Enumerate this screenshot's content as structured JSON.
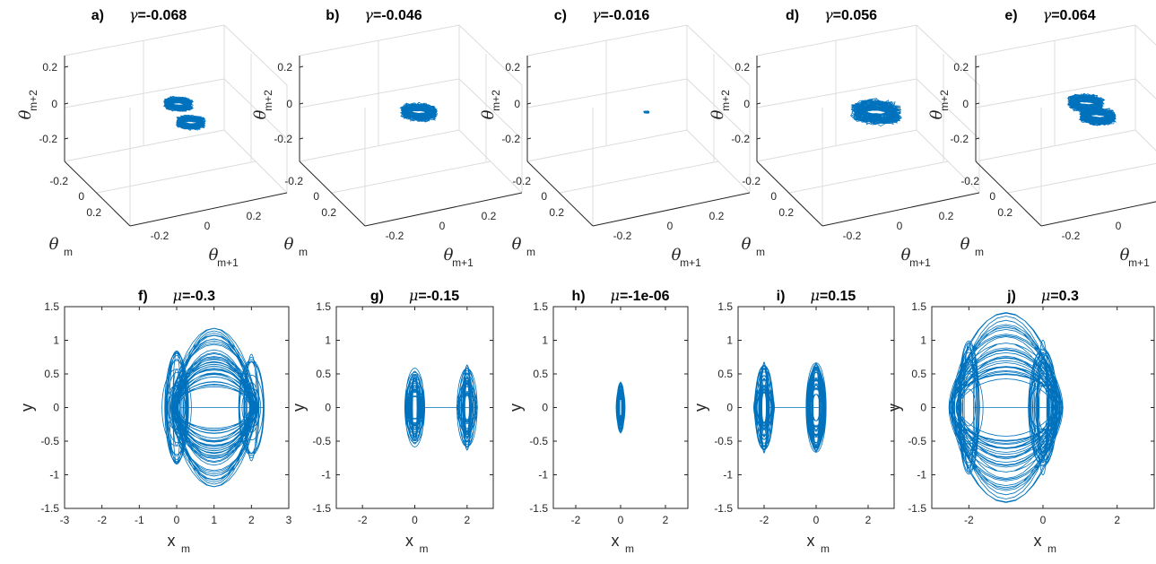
{
  "chart_data": [
    {
      "panel": "a)",
      "param_symbol": "γ",
      "param_value": "=-0.068",
      "type": "line3d",
      "xlabel": {
        "main": "θ",
        "sub": "m+1"
      },
      "ylabel": {
        "main": "θ",
        "sub": "m"
      },
      "zlabel": {
        "main": "θ",
        "sub": "m+2"
      },
      "xticks": [
        "-0.2",
        "0",
        "0.2"
      ],
      "yticks": [
        "-0.2",
        "0",
        "0.2"
      ],
      "zticks": [
        "0.2",
        "0",
        "-0.2"
      ],
      "attractor": {
        "shape": "double-lobe",
        "centers": [
          [
            -0.1,
            -0.1
          ],
          [
            0.13,
            0.13
          ]
        ],
        "radius": 0.08,
        "color": "#0072bd"
      }
    },
    {
      "panel": "b)",
      "param_symbol": "γ",
      "param_value": "=-0.046",
      "type": "line3d",
      "xlabel": {
        "main": "θ",
        "sub": "m+1"
      },
      "ylabel": {
        "main": "θ",
        "sub": "m"
      },
      "zlabel": {
        "main": "θ",
        "sub": "m+2"
      },
      "xticks": [
        "-0.2",
        "0",
        "0.2"
      ],
      "yticks": [
        "-0.2",
        "0",
        "0.2"
      ],
      "zticks": [
        "0.2",
        "0",
        "-0.2"
      ],
      "attractor": {
        "shape": "single-lobe",
        "centers": [
          [
            0,
            0
          ]
        ],
        "radius": 0.1,
        "color": "#0072bd"
      }
    },
    {
      "panel": "c)",
      "param_symbol": "γ",
      "param_value": "=-0.016",
      "type": "line3d",
      "xlabel": {
        "main": "θ",
        "sub": "m+1"
      },
      "ylabel": {
        "main": "θ",
        "sub": "m"
      },
      "zlabel": {
        "main": "θ",
        "sub": "m+2"
      },
      "xticks": [
        "-0.2",
        "0",
        "0.2"
      ],
      "yticks": [
        "-0.2",
        "0",
        "0.2"
      ],
      "zticks": [
        "0.2",
        "0",
        "-0.2"
      ],
      "attractor": {
        "shape": "point",
        "centers": [
          [
            0,
            0
          ]
        ],
        "radius": 0.015,
        "color": "#0072bd"
      }
    },
    {
      "panel": "d)",
      "param_symbol": "γ",
      "param_value": "=0.056",
      "type": "line3d",
      "xlabel": {
        "main": "θ",
        "sub": "m+1"
      },
      "ylabel": {
        "main": "θ",
        "sub": "m"
      },
      "zlabel": {
        "main": "θ",
        "sub": "m+2"
      },
      "xticks": [
        "-0.2",
        "0",
        "0.2"
      ],
      "yticks": [
        "-0.2",
        "0",
        "0.2"
      ],
      "zticks": [
        "0.2",
        "0",
        "-0.2"
      ],
      "attractor": {
        "shape": "single-lobe",
        "centers": [
          [
            0,
            0
          ]
        ],
        "radius": 0.14,
        "color": "#0072bd"
      }
    },
    {
      "panel": "e)",
      "param_symbol": "γ",
      "param_value": "=0.064",
      "type": "line3d",
      "xlabel": {
        "main": "θ",
        "sub": "m+1"
      },
      "ylabel": {
        "main": "θ",
        "sub": "m"
      },
      "zlabel": {
        "main": "θ",
        "sub": "m+2"
      },
      "xticks": [
        "-0.2",
        "0",
        "0.2"
      ],
      "yticks": [
        "-0.2",
        "0",
        "0.2"
      ],
      "zticks": [
        "0.2",
        "0",
        "-0.2"
      ],
      "attractor": {
        "shape": "double-lobe",
        "centers": [
          [
            -0.12,
            -0.1
          ],
          [
            0.05,
            0.05
          ]
        ],
        "radius": 0.1,
        "color": "#0072bd"
      }
    },
    {
      "panel": "f)",
      "param_symbol": "μ",
      "param_value": "=-0.3",
      "type": "line",
      "xlabel": {
        "main": "x",
        "sub": "m"
      },
      "ylabel": "y",
      "xlim": [
        -3,
        3
      ],
      "ylim": [
        -1.5,
        1.5
      ],
      "xticks": [
        "-3",
        "-2",
        "-1",
        "0",
        "1",
        "2",
        "3"
      ],
      "yticks": [
        "1.5",
        "1",
        "0.5",
        "0",
        "-0.5",
        "-1",
        "-1.5"
      ],
      "attractor": {
        "shape": "double-scroll",
        "lobes": [
          0,
          2
        ],
        "xrange": [
          -0.2,
          2.2
        ],
        "yamp": 1.0,
        "color": "#0072bd"
      }
    },
    {
      "panel": "g)",
      "param_symbol": "μ",
      "param_value": "=-0.15",
      "type": "line",
      "xlabel": {
        "main": "x",
        "sub": "m"
      },
      "ylabel": "y",
      "xlim": [
        -3,
        3
      ],
      "ylim": [
        -1.5,
        1.5
      ],
      "xticks": [
        "-2",
        "0",
        "2"
      ],
      "yticks": [
        "1.5",
        "1",
        "0.5",
        "0",
        "-0.5",
        "-1",
        "-1.5"
      ],
      "attractor": {
        "shape": "two-lobes",
        "lobes": [
          0,
          2
        ],
        "xrange": [
          -0.3,
          2.3
        ],
        "yamp": 0.75,
        "color": "#0072bd"
      }
    },
    {
      "panel": "h)",
      "param_symbol": "μ",
      "param_value": "=-1e-06",
      "type": "line",
      "xlabel": {
        "main": "x",
        "sub": "m"
      },
      "ylabel": "y",
      "xlim": [
        -3,
        3
      ],
      "ylim": [
        -1.5,
        1.5
      ],
      "xticks": [
        "-2",
        "0",
        "2"
      ],
      "yticks": [
        "1.5",
        "1",
        "0.5",
        "0",
        "-0.5",
        "-1",
        "-1.5"
      ],
      "attractor": {
        "shape": "single",
        "lobes": [
          0
        ],
        "xrange": [
          -0.2,
          0.2
        ],
        "yamp": 0.45,
        "color": "#0072bd"
      }
    },
    {
      "panel": "i)",
      "param_symbol": "μ",
      "param_value": "=0.15",
      "type": "line",
      "xlabel": {
        "main": "x",
        "sub": "m"
      },
      "ylabel": "y",
      "xlim": [
        -3,
        3
      ],
      "ylim": [
        -1.5,
        1.5
      ],
      "xticks": [
        "-2",
        "0",
        "2"
      ],
      "yticks": [
        "1.5",
        "1",
        "0.5",
        "0",
        "-0.5",
        "-1",
        "-1.5"
      ],
      "attractor": {
        "shape": "two-lobes",
        "lobes": [
          -2,
          0
        ],
        "xrange": [
          -2.3,
          0.3
        ],
        "yamp": 0.8,
        "color": "#0072bd"
      }
    },
    {
      "panel": "j)",
      "param_symbol": "μ",
      "param_value": "=0.3",
      "type": "line",
      "xlabel": {
        "main": "x",
        "sub": "m"
      },
      "ylabel": "y",
      "xlim": [
        -3,
        3
      ],
      "ylim": [
        -1.5,
        1.5
      ],
      "xticks": [
        "-2",
        "0",
        "2"
      ],
      "yticks": [
        "1.5",
        "1",
        "0.5",
        "0",
        "-0.5",
        "-1",
        "-1.5"
      ],
      "attractor": {
        "shape": "double-scroll",
        "lobes": [
          -2,
          0
        ],
        "xrange": [
          -2.6,
          0.6
        ],
        "yamp": 1.2,
        "color": "#0072bd"
      }
    }
  ]
}
